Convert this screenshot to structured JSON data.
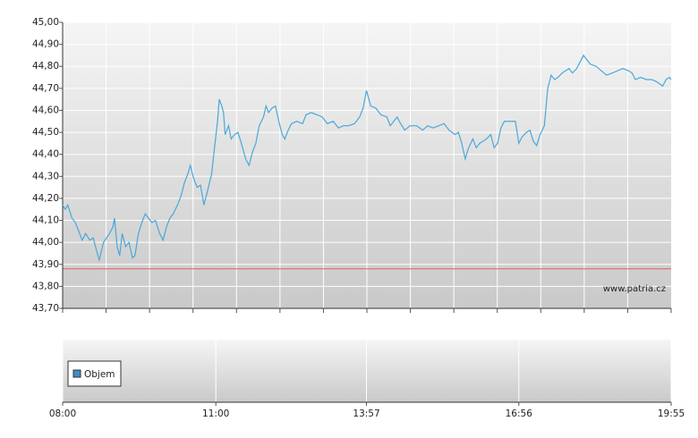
{
  "chart_data": [
    {
      "type": "line",
      "xlim": [
        "08:00",
        "19:55"
      ],
      "ylim": [
        43.7,
        45.0
      ],
      "yticks": [
        {
          "value": 43.7,
          "label": "43,70"
        },
        {
          "value": 43.8,
          "label": "43,80"
        },
        {
          "value": 43.9,
          "label": "43,90"
        },
        {
          "value": 44.0,
          "label": "44,00"
        },
        {
          "value": 44.1,
          "label": "44,10"
        },
        {
          "value": 44.2,
          "label": "44,20"
        },
        {
          "value": 44.3,
          "label": "44,30"
        },
        {
          "value": 44.4,
          "label": "44,40"
        },
        {
          "value": 44.5,
          "label": "44,50"
        },
        {
          "value": 44.6,
          "label": "44,60"
        },
        {
          "value": 44.7,
          "label": "44,70"
        },
        {
          "value": 44.8,
          "label": "44,80"
        },
        {
          "value": 44.9,
          "label": "44,90"
        },
        {
          "value": 45.0,
          "label": "45,00"
        }
      ],
      "grid": true,
      "reference_line": {
        "value": 43.88,
        "color": "#e06060"
      },
      "watermark": "www.patria.cz",
      "x": [
        "08:00",
        "08:03",
        "08:06",
        "08:11",
        "08:15",
        "08:19",
        "08:23",
        "08:27",
        "08:32",
        "08:36",
        "08:40",
        "08:43",
        "08:48",
        "08:55",
        "08:59",
        "09:01",
        "09:04",
        "09:07",
        "09:10",
        "09:14",
        "09:18",
        "09:22",
        "09:25",
        "09:29",
        "09:33",
        "09:37",
        "09:41",
        "09:45",
        "09:49",
        "09:54",
        "09:58",
        "10:02",
        "10:06",
        "10:10",
        "10:15",
        "10:19",
        "10:23",
        "10:27",
        "10:30",
        "10:34",
        "10:38",
        "10:42",
        "10:46",
        "10:50",
        "10:55",
        "10:57",
        "10:59",
        "11:02",
        "11:04",
        "11:07",
        "11:09",
        "11:11",
        "11:15",
        "11:18",
        "11:22",
        "11:26",
        "11:30",
        "11:35",
        "11:39",
        "11:43",
        "11:47",
        "11:51",
        "11:56",
        "11:59",
        "12:02",
        "12:06",
        "12:10",
        "12:14",
        "12:18",
        "12:21",
        "12:25",
        "12:29",
        "12:35",
        "12:42",
        "12:46",
        "12:52",
        "12:59",
        "13:05",
        "13:11",
        "13:18",
        "13:24",
        "13:30",
        "13:36",
        "13:43",
        "13:49",
        "13:53",
        "13:57",
        "14:02",
        "14:08",
        "14:14",
        "14:21",
        "14:25",
        "14:29",
        "14:33",
        "14:37",
        "14:42",
        "14:48",
        "14:56",
        "15:03",
        "15:09",
        "15:15",
        "15:22",
        "15:28",
        "15:34",
        "15:41",
        "15:45",
        "15:49",
        "15:53",
        "15:57",
        "16:02",
        "16:06",
        "16:10",
        "16:14",
        "16:18",
        "16:23",
        "16:27",
        "16:31",
        "16:35",
        "16:39",
        "16:46",
        "16:52",
        "16:56",
        "17:00",
        "17:05",
        "17:09",
        "17:13",
        "17:17",
        "17:21",
        "17:26",
        "17:30",
        "17:34",
        "17:38",
        "17:42",
        "17:47",
        "17:51",
        "17:55",
        "17:59",
        "18:04",
        "18:08",
        "18:12",
        "18:16",
        "18:20",
        "18:27",
        "18:33",
        "18:39",
        "18:46",
        "18:52",
        "18:58",
        "19:05",
        "19:09",
        "19:13",
        "19:19",
        "19:26",
        "19:32",
        "19:38",
        "19:45",
        "19:49",
        "19:53",
        "19:55"
      ],
      "series": [
        {
          "color": "#4aa8d8",
          "values": [
            44.17,
            44.15,
            44.17,
            44.11,
            44.09,
            44.05,
            44.01,
            44.04,
            44.01,
            44.02,
            43.96,
            43.92,
            44.0,
            44.04,
            44.07,
            44.11,
            43.98,
            43.94,
            44.04,
            43.98,
            44.0,
            43.93,
            43.94,
            44.04,
            44.09,
            44.13,
            44.11,
            44.09,
            44.1,
            44.04,
            44.01,
            44.07,
            44.11,
            44.13,
            44.17,
            44.21,
            44.27,
            44.31,
            44.35,
            44.29,
            44.25,
            44.26,
            44.17,
            44.23,
            44.31,
            44.38,
            44.45,
            44.55,
            44.65,
            44.62,
            44.59,
            44.49,
            44.53,
            44.47,
            44.49,
            44.5,
            44.45,
            44.38,
            44.35,
            44.41,
            44.45,
            44.53,
            44.57,
            44.62,
            44.59,
            44.61,
            44.62,
            44.55,
            44.49,
            44.47,
            44.51,
            44.54,
            44.55,
            44.54,
            44.58,
            44.59,
            44.58,
            44.57,
            44.54,
            44.55,
            44.52,
            44.53,
            44.53,
            44.54,
            44.57,
            44.61,
            44.69,
            44.62,
            44.61,
            44.58,
            44.57,
            44.53,
            44.55,
            44.57,
            44.54,
            44.51,
            44.53,
            44.53,
            44.51,
            44.53,
            44.52,
            44.53,
            44.54,
            44.51,
            44.49,
            44.5,
            44.45,
            44.38,
            44.43,
            44.47,
            44.43,
            44.45,
            44.46,
            44.47,
            44.49,
            44.43,
            44.45,
            44.52,
            44.55,
            44.55,
            44.55,
            44.45,
            44.48,
            44.5,
            44.51,
            44.46,
            44.44,
            44.49,
            44.53,
            44.7,
            44.76,
            44.74,
            44.75,
            44.77,
            44.78,
            44.79,
            44.77,
            44.79,
            44.82,
            44.85,
            44.83,
            44.81,
            44.8,
            44.78,
            44.76,
            44.77,
            44.78,
            44.79,
            44.78,
            44.77,
            44.74,
            44.75,
            44.74,
            44.74,
            44.73,
            44.71,
            44.74,
            44.75,
            44.74
          ]
        }
      ]
    },
    {
      "type": "bar",
      "xlim": [
        "08:00",
        "19:55"
      ],
      "xticks": [
        "08:00",
        "11:00",
        "13:57",
        "16:56",
        "19:55"
      ],
      "grid": true,
      "x": [],
      "series": [
        {
          "name": "Objem",
          "color": "#3d8fc6",
          "values": []
        }
      ]
    }
  ]
}
